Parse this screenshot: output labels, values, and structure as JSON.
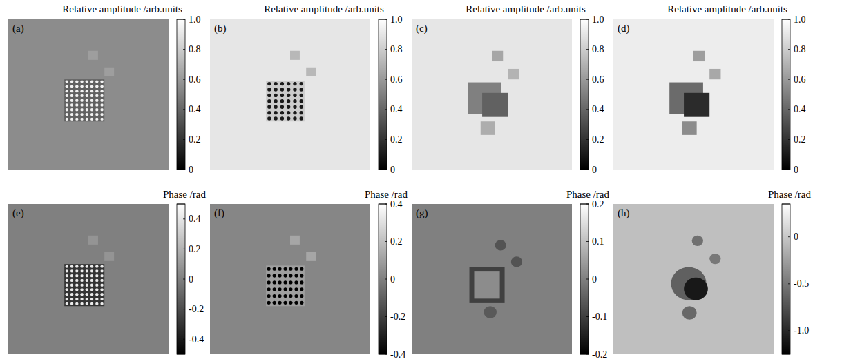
{
  "chart_data": [
    {
      "type": "heatmap",
      "panel": "(a)",
      "title": "Relative amplitude /arb.units",
      "clim": [
        0,
        1
      ],
      "cticks": [
        0,
        0.2,
        0.4,
        0.6,
        0.8,
        {
          "value": 1,
          "label": "1.0"
        }
      ],
      "background": 0.55,
      "shapes": [
        {
          "shape": "rect",
          "x": 0.5,
          "y": 0.21,
          "w": 0.06,
          "h": 0.06,
          "value": 0.62
        },
        {
          "shape": "rect",
          "x": 0.6,
          "y": 0.32,
          "w": 0.06,
          "h": 0.06,
          "value": 0.62
        },
        {
          "shape": "rect",
          "x": 0.35,
          "y": 0.4,
          "w": 0.25,
          "h": 0.28,
          "value": 0.38
        },
        {
          "shape": "dots",
          "x": 0.35,
          "y": 0.4,
          "w": 0.25,
          "h": 0.28,
          "rows": 9,
          "cols": 8,
          "value": 0.95
        }
      ]
    },
    {
      "type": "heatmap",
      "panel": "(b)",
      "title": "Relative amplitude /arb.units",
      "clim": [
        0,
        1
      ],
      "cticks": [
        0,
        0.2,
        0.4,
        0.6,
        0.8,
        {
          "value": 1,
          "label": "1.0"
        }
      ],
      "background": 0.9,
      "shapes": [
        {
          "shape": "rect",
          "x": 0.5,
          "y": 0.21,
          "w": 0.06,
          "h": 0.06,
          "value": 0.72
        },
        {
          "shape": "rect",
          "x": 0.6,
          "y": 0.32,
          "w": 0.06,
          "h": 0.06,
          "value": 0.72
        },
        {
          "shape": "rect",
          "x": 0.35,
          "y": 0.41,
          "w": 0.24,
          "h": 0.27,
          "value": 0.8
        },
        {
          "shape": "dots",
          "x": 0.35,
          "y": 0.41,
          "w": 0.24,
          "h": 0.27,
          "rows": 7,
          "cols": 6,
          "value": 0.1
        }
      ]
    },
    {
      "type": "heatmap",
      "panel": "(c)",
      "title": "Relative amplitude /arb.units",
      "clim": [
        0,
        1
      ],
      "cticks": [
        0,
        0.2,
        0.4,
        0.6,
        0.8,
        {
          "value": 1,
          "label": "1.0"
        }
      ],
      "background": 0.9,
      "shapes": [
        {
          "shape": "rect",
          "x": 0.5,
          "y": 0.21,
          "w": 0.07,
          "h": 0.07,
          "value": 0.65
        },
        {
          "shape": "rect",
          "x": 0.6,
          "y": 0.33,
          "w": 0.07,
          "h": 0.07,
          "value": 0.7
        },
        {
          "shape": "rect",
          "x": 0.43,
          "y": 0.68,
          "w": 0.09,
          "h": 0.09,
          "value": 0.68
        },
        {
          "shape": "rect",
          "x": 0.35,
          "y": 0.42,
          "w": 0.21,
          "h": 0.21,
          "value": 0.5
        },
        {
          "shape": "rect",
          "x": 0.44,
          "y": 0.49,
          "w": 0.16,
          "h": 0.16,
          "value": 0.38
        }
      ]
    },
    {
      "type": "heatmap",
      "panel": "(d)",
      "title": "Relative amplitude /arb.units",
      "clim": [
        0,
        1
      ],
      "cticks": [
        0,
        0.2,
        0.4,
        0.6,
        0.8,
        {
          "value": 1,
          "label": "1.0"
        }
      ],
      "background": 0.93,
      "shapes": [
        {
          "shape": "rect",
          "x": 0.5,
          "y": 0.21,
          "w": 0.07,
          "h": 0.07,
          "value": 0.62
        },
        {
          "shape": "rect",
          "x": 0.6,
          "y": 0.33,
          "w": 0.07,
          "h": 0.07,
          "value": 0.66
        },
        {
          "shape": "rect",
          "x": 0.43,
          "y": 0.68,
          "w": 0.09,
          "h": 0.09,
          "value": 0.55
        },
        {
          "shape": "rect",
          "x": 0.35,
          "y": 0.42,
          "w": 0.21,
          "h": 0.21,
          "value": 0.42
        },
        {
          "shape": "rect",
          "x": 0.44,
          "y": 0.49,
          "w": 0.16,
          "h": 0.16,
          "value": 0.17
        }
      ]
    },
    {
      "type": "heatmap",
      "panel": "(e)",
      "title": "Phase /rad",
      "clim": [
        -0.5,
        0.5
      ],
      "cticks": [
        -0.4,
        -0.2,
        0,
        0.2,
        0.4
      ],
      "background": 0,
      "shapes": [
        {
          "shape": "rect",
          "x": 0.5,
          "y": 0.21,
          "w": 0.06,
          "h": 0.06,
          "value": 0.08
        },
        {
          "shape": "rect",
          "x": 0.6,
          "y": 0.32,
          "w": 0.06,
          "h": 0.06,
          "value": 0.08
        },
        {
          "shape": "rect",
          "x": 0.35,
          "y": 0.4,
          "w": 0.25,
          "h": 0.28,
          "value": -0.3
        },
        {
          "shape": "dots",
          "x": 0.35,
          "y": 0.4,
          "w": 0.25,
          "h": 0.28,
          "rows": 9,
          "cols": 8,
          "value": 0.42
        }
      ]
    },
    {
      "type": "heatmap",
      "panel": "(f)",
      "title": "Phase /rad",
      "clim": [
        -0.4,
        0.4
      ],
      "cticks": [
        -0.4,
        -0.2,
        0,
        0.2,
        0.4
      ],
      "background": 0.02,
      "shapes": [
        {
          "shape": "rect",
          "x": 0.5,
          "y": 0.21,
          "w": 0.06,
          "h": 0.06,
          "value": 0.12
        },
        {
          "shape": "rect",
          "x": 0.6,
          "y": 0.32,
          "w": 0.06,
          "h": 0.06,
          "value": 0.12
        },
        {
          "shape": "rect",
          "x": 0.35,
          "y": 0.41,
          "w": 0.24,
          "h": 0.27,
          "value": 0.1
        },
        {
          "shape": "dots",
          "x": 0.35,
          "y": 0.41,
          "w": 0.24,
          "h": 0.27,
          "rows": 6,
          "cols": 7,
          "value": -0.4
        }
      ]
    },
    {
      "type": "heatmap",
      "panel": "(g)",
      "title": "Phase /rad",
      "clim": [
        -0.2,
        0.2
      ],
      "cticks": [
        -0.2,
        -0.1,
        0,
        0.1,
        0.2
      ],
      "background": 0,
      "shapes": [
        {
          "shape": "circle",
          "x": 0.52,
          "y": 0.24,
          "w": 0.07,
          "h": 0.07,
          "value": -0.07
        },
        {
          "shape": "circle",
          "x": 0.62,
          "y": 0.35,
          "w": 0.07,
          "h": 0.07,
          "value": -0.07
        },
        {
          "shape": "circle",
          "x": 0.45,
          "y": 0.68,
          "w": 0.08,
          "h": 0.08,
          "value": -0.06
        },
        {
          "shape": "rect",
          "x": 0.36,
          "y": 0.42,
          "w": 0.22,
          "h": 0.24,
          "value": -0.1
        },
        {
          "shape": "rect",
          "x": 0.39,
          "y": 0.45,
          "w": 0.16,
          "h": 0.18,
          "value": 0.02
        }
      ]
    },
    {
      "type": "heatmap",
      "panel": "(h)",
      "title": "Phase /rad",
      "clim": [
        -1.25,
        0.35
      ],
      "cticks": [
        {
          "value": -1,
          "label": "-1.0"
        },
        -0.5,
        0
      ],
      "background": -0.05,
      "shapes": [
        {
          "shape": "circle",
          "x": 0.49,
          "y": 0.21,
          "w": 0.07,
          "h": 0.07,
          "value": -0.55
        },
        {
          "shape": "circle",
          "x": 0.6,
          "y": 0.33,
          "w": 0.07,
          "h": 0.07,
          "value": -0.5
        },
        {
          "shape": "circle",
          "x": 0.43,
          "y": 0.68,
          "w": 0.09,
          "h": 0.09,
          "value": -0.6
        },
        {
          "shape": "circle",
          "x": 0.36,
          "y": 0.42,
          "w": 0.22,
          "h": 0.22,
          "value": -0.65
        },
        {
          "shape": "circle",
          "x": 0.44,
          "y": 0.49,
          "w": 0.15,
          "h": 0.15,
          "value": -1.1
        }
      ]
    }
  ]
}
